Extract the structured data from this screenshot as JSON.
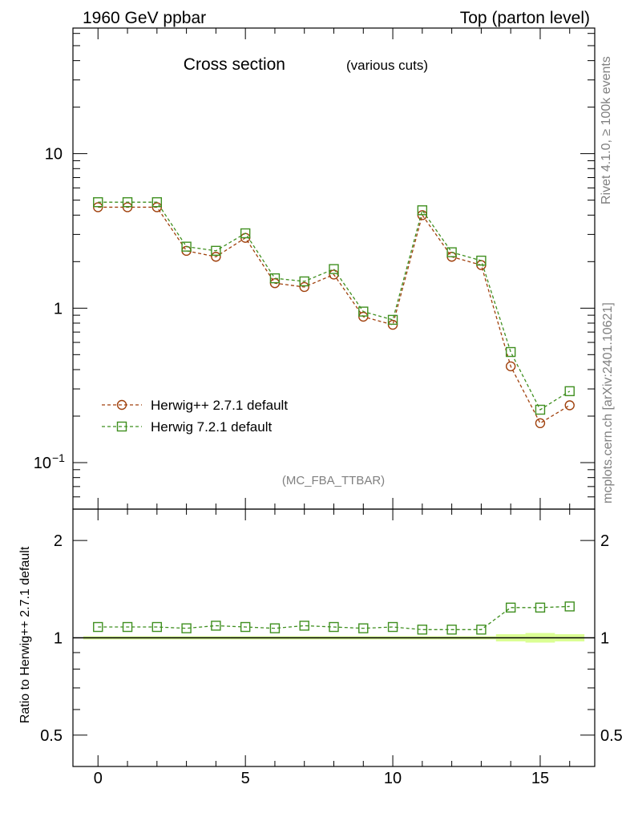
{
  "header": {
    "left_title": "1960 GeV ppbar",
    "right_title": "Top (parton level)"
  },
  "side": {
    "rivet": "Rivet 4.1.0, ≥ 100k events",
    "mcplots": "mcplots.cern.ch [arXiv:2401.10621]"
  },
  "chart_data": {
    "type": "line",
    "title": "Cross section",
    "subtitle": "(various cuts)",
    "analysis_label": "(MC_FBA_TTBAR)",
    "xlabel": "",
    "ylabel": "",
    "x": [
      0,
      1,
      2,
      3,
      4,
      5,
      6,
      7,
      8,
      9,
      10,
      11,
      12,
      13,
      14,
      15,
      16
    ],
    "xlim": [
      -0.85,
      16.85
    ],
    "ylim": [
      0.05,
      65
    ],
    "yscale": "log",
    "x_ticks": [
      "0",
      "5",
      "10",
      "15"
    ],
    "y_ticks": [
      {
        "value": 0.1,
        "base": "10",
        "exp": "−1"
      },
      {
        "value": 1,
        "base": "1",
        "exp": ""
      },
      {
        "value": 10,
        "base": "10",
        "exp": ""
      }
    ],
    "series": [
      {
        "name": "Herwig++ 2.7.1 default",
        "color": "#a0410d",
        "marker": "circle",
        "values": [
          4.5,
          4.5,
          4.5,
          2.35,
          2.15,
          2.85,
          1.45,
          1.37,
          1.65,
          0.88,
          0.78,
          4.0,
          2.15,
          1.9,
          0.42,
          0.18,
          0.235
        ]
      },
      {
        "name": "Herwig 7.2.1 default",
        "color": "#3f8f1f",
        "marker": "square",
        "values": [
          4.85,
          4.85,
          4.85,
          2.5,
          2.35,
          3.05,
          1.56,
          1.49,
          1.79,
          0.95,
          0.84,
          4.3,
          2.3,
          2.03,
          0.52,
          0.22,
          0.29
        ]
      }
    ],
    "legend_position": "lower-left",
    "ratio": {
      "ylabel": "Ratio to Herwig++ 2.7.1 default",
      "ylim": [
        0.4,
        2.5
      ],
      "yscale": "log",
      "y_ticks": [
        "0.5",
        "1",
        "2"
      ],
      "reference_value": 1,
      "values": [
        1.08,
        1.08,
        1.08,
        1.07,
        1.09,
        1.08,
        1.07,
        1.09,
        1.08,
        1.07,
        1.08,
        1.06,
        1.06,
        1.06,
        1.24,
        1.24,
        1.25
      ],
      "band_color": "#ccff66"
    }
  }
}
